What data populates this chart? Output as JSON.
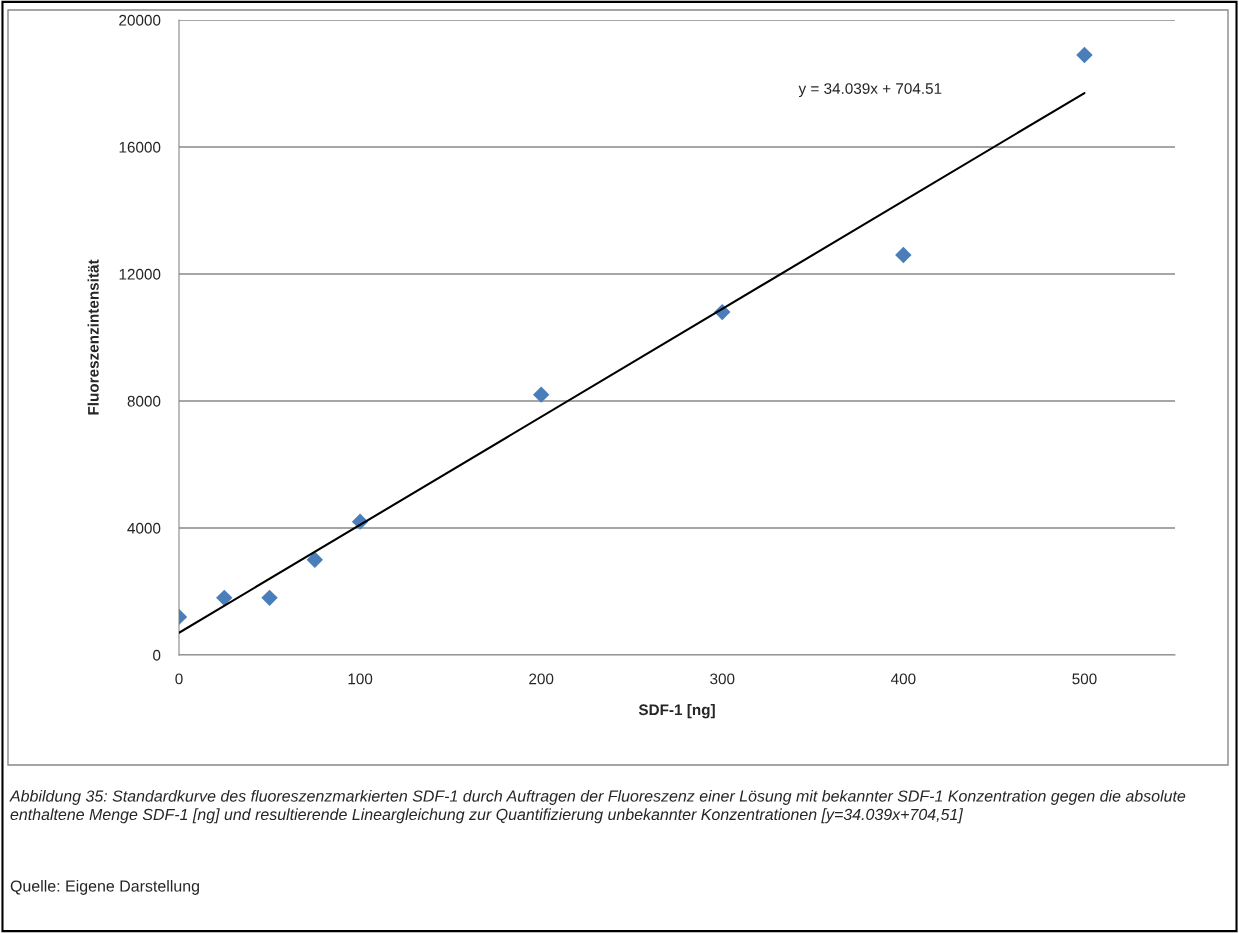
{
  "chart_data": {
    "type": "scatter",
    "xlabel": "SDF-1 [ng]",
    "ylabel": "Fluoreszenzintensität",
    "xlim": [
      0,
      550
    ],
    "xticks": [
      0,
      100,
      200,
      300,
      400,
      500
    ],
    "ylim": [
      0,
      20000
    ],
    "yticks": [
      0,
      4000,
      8000,
      12000,
      16000,
      20000
    ],
    "grid": "y",
    "marker": "diamond",
    "series": [
      {
        "color": "#4a7ebb",
        "x": [
          0,
          25,
          50,
          75,
          100,
          200,
          300,
          400,
          500
        ],
        "values": [
          1200,
          1800,
          1800,
          3000,
          4200,
          8200,
          10800,
          12600,
          18900
        ]
      },
      {
        "type": "line",
        "color": "#000000",
        "marker": "none",
        "line_style": "solid",
        "x": [
          0,
          500
        ],
        "values": [
          700,
          17700
        ]
      }
    ],
    "annotations": [
      "y = 34.039x + 704.51",
      "Abbildung 35: Standardkurve des fluoreszenzmarkierten SDF-1 durch Auftragen der Fluoreszenz einer Lösung mit bekannter SDF-1 Konzentration gegen die absolute enthaltene Menge SDF-1 [ng] und resultierende Lineargleichung zur Quantifizierung unbekannter Konzentrationen [y=34.039x+704,51]",
      "Quelle: Eigene Darstellung"
    ]
  }
}
